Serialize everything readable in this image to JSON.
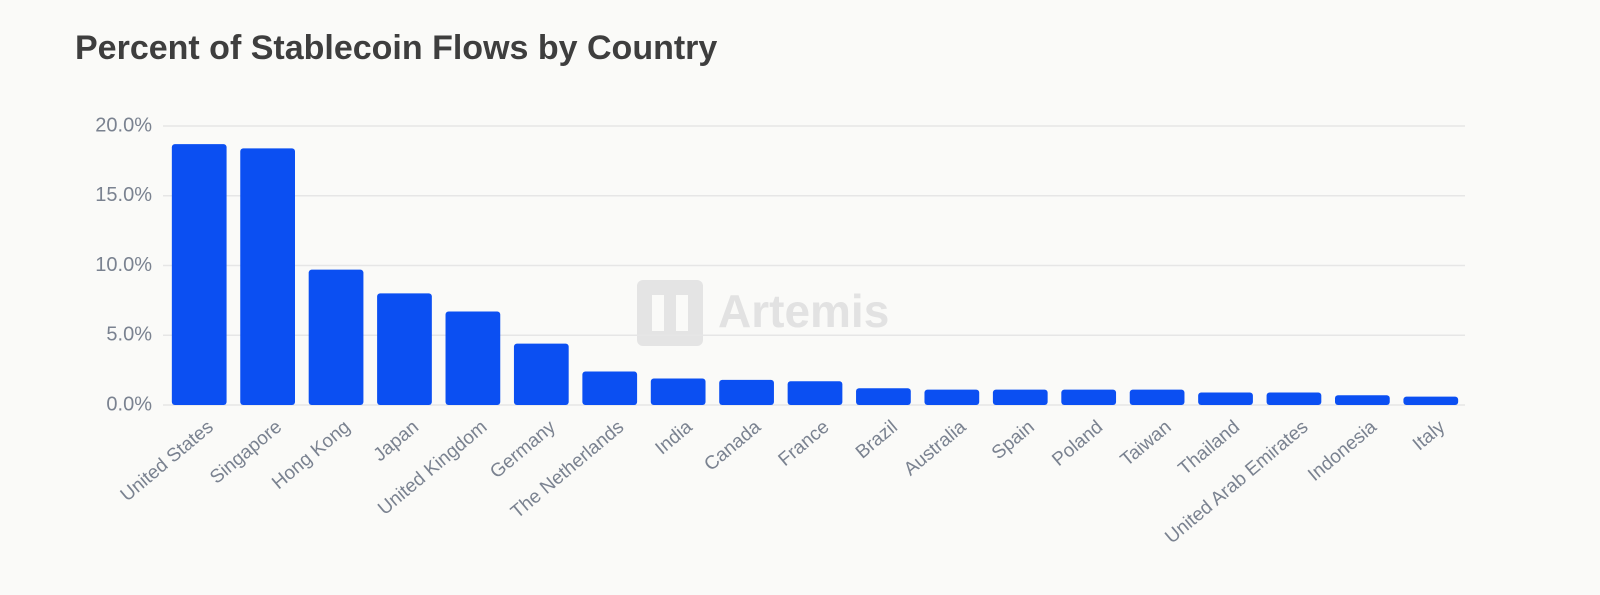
{
  "chart_data": {
    "type": "bar",
    "title": "Percent of Stablecoin Flows by Country",
    "watermark": "Artemis",
    "categories": [
      "United States",
      "Singapore",
      "Hong Kong",
      "Japan",
      "United Kingdom",
      "Germany",
      "The Netherlands",
      "India",
      "Canada",
      "France",
      "Brazil",
      "Australia",
      "Spain",
      "Poland",
      "Taiwan",
      "Thailand",
      "United Arab Emirates",
      "Indonesia",
      "Italy"
    ],
    "values": [
      18.7,
      18.4,
      9.7,
      8.0,
      6.7,
      4.4,
      2.4,
      1.9,
      1.8,
      1.7,
      1.2,
      1.1,
      1.1,
      1.1,
      1.1,
      0.9,
      0.9,
      0.7,
      0.6
    ],
    "color": "#0b4ff2",
    "ylim": [
      0,
      20
    ],
    "yticks": [
      {
        "value": 0,
        "label": "0.0%"
      },
      {
        "value": 5,
        "label": "5.0%"
      },
      {
        "value": 10,
        "label": "10.0%"
      },
      {
        "value": 15,
        "label": "15.0%"
      },
      {
        "value": 20,
        "label": "20.0%"
      }
    ],
    "grid": true
  }
}
